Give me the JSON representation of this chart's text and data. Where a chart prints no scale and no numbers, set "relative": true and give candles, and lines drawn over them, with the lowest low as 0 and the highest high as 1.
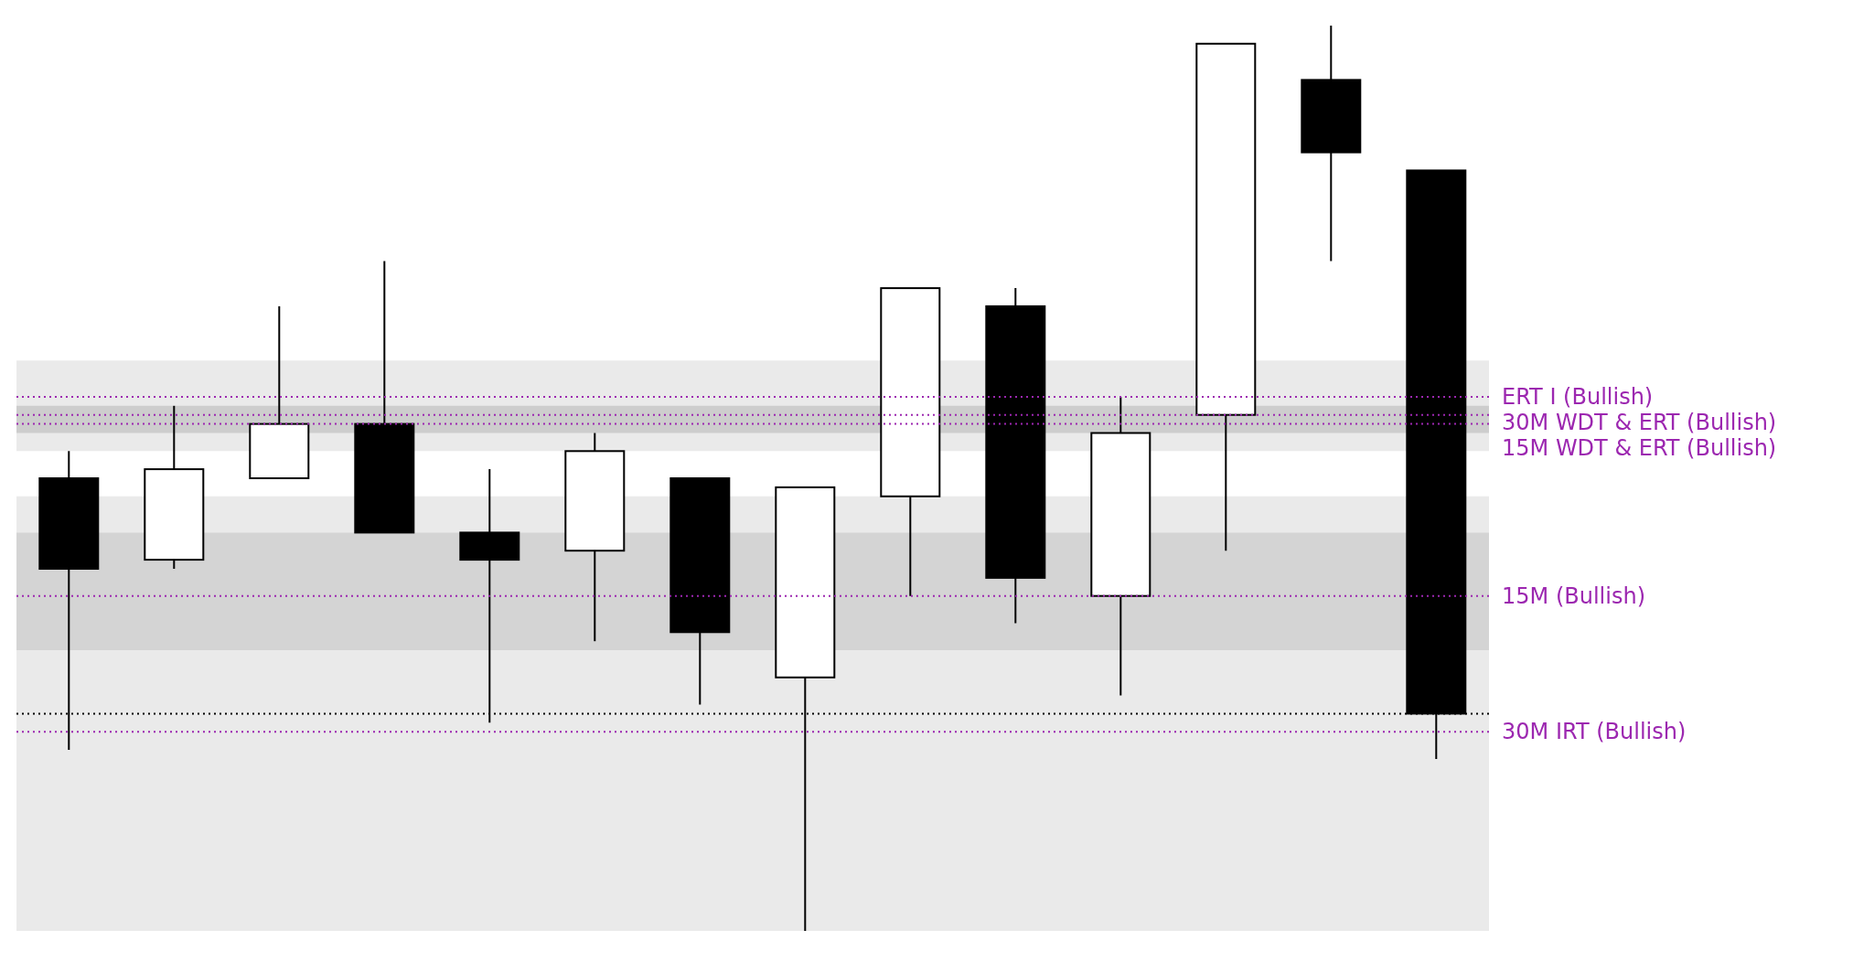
{
  "chart_data": {
    "type": "candlestick",
    "relative": true,
    "categories": [
      null,
      null,
      null,
      null,
      null,
      null,
      null,
      null,
      null,
      null,
      null,
      null,
      null,
      null
    ],
    "ohlc": [
      [
        0.5,
        0.53,
        0.2,
        0.4
      ],
      [
        0.41,
        0.58,
        0.4,
        0.51
      ],
      [
        0.5,
        0.69,
        0.5,
        0.56
      ],
      [
        0.56,
        0.74,
        0.44,
        0.44
      ],
      [
        0.44,
        0.51,
        0.23,
        0.41
      ],
      [
        0.42,
        0.55,
        0.32,
        0.53
      ],
      [
        0.5,
        0.5,
        0.25,
        0.33
      ],
      [
        0.28,
        0.49,
        0,
        0.49
      ],
      [
        0.48,
        0.71,
        0.37,
        0.71
      ],
      [
        0.69,
        0.71,
        0.34,
        0.39
      ],
      [
        0.37,
        0.59,
        0.26,
        0.55
      ],
      [
        0.57,
        0.98,
        0.42,
        0.98
      ],
      [
        0.94,
        1,
        0.74,
        0.86
      ],
      [
        0.84,
        0.84,
        0.19,
        0.24
      ]
    ],
    "bands": [
      {
        "axis": "y",
        "from": 0,
        "to": 0.48,
        "color": "#e6e6e6"
      },
      {
        "axis": "y",
        "from": 0.31,
        "to": 0.44,
        "color": "#d0d0d0"
      },
      {
        "axis": "y",
        "from": 0.53,
        "to": 0.63,
        "color": "#e6e6e6"
      },
      {
        "axis": "y",
        "from": 0.55,
        "to": 0.58,
        "color": "#c8c8c8"
      }
    ],
    "ref_lines": [
      {
        "axis": "y",
        "value": 0.59,
        "label": "ERT I (Bullish)",
        "color": "#9c27b0",
        "line_style": "dotted"
      },
      {
        "axis": "y",
        "value": 0.57,
        "label": "30M WDT & ERT (Bullish)",
        "color": "#9c27b0",
        "line_style": "dotted"
      },
      {
        "axis": "y",
        "value": 0.56,
        "label": "15M WDT & ERT (Bullish)",
        "color": "#9c27b0",
        "line_style": "dotted"
      },
      {
        "axis": "y",
        "value": 0.37,
        "label": "15M (Bullish)",
        "color": "#9c27b0",
        "line_style": "dotted"
      },
      {
        "axis": "y",
        "value": 0.24,
        "color": "#000000",
        "line_style": "dotted"
      },
      {
        "axis": "y",
        "value": 0.22,
        "label": "30M IRT (Bullish)",
        "color": "#9c27b0",
        "line_style": "dotted"
      }
    ]
  }
}
